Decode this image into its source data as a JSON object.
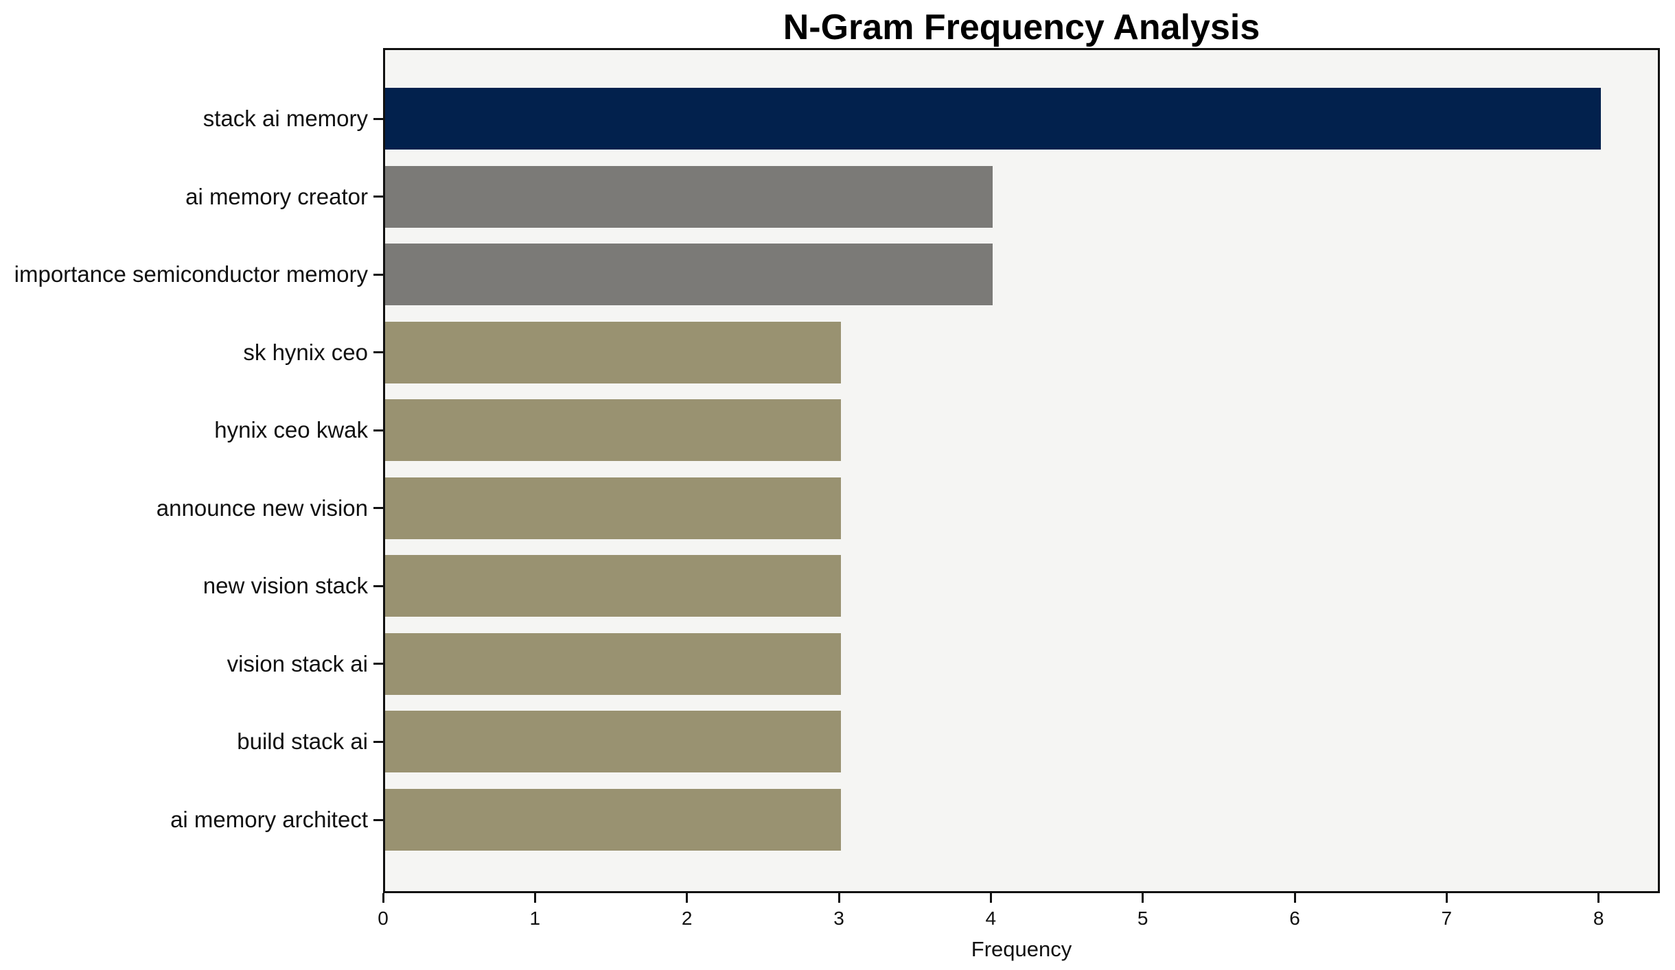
{
  "chart_data": {
    "type": "bar",
    "orientation": "horizontal",
    "title": "N-Gram Frequency Analysis",
    "xlabel": "Frequency",
    "ylabel": "",
    "categories": [
      "stack ai memory",
      "ai memory creator",
      "importance semiconductor memory",
      "sk hynix ceo",
      "hynix ceo kwak",
      "announce new vision",
      "new vision stack",
      "vision stack ai",
      "build stack ai",
      "ai memory architect"
    ],
    "values": [
      8,
      4,
      4,
      3,
      3,
      3,
      3,
      3,
      3,
      3
    ],
    "bar_colors": [
      "#02214d",
      "#7b7a77",
      "#7b7a77",
      "#999271",
      "#999271",
      "#999271",
      "#999271",
      "#999271",
      "#999271",
      "#999271"
    ],
    "x_ticks": [
      0,
      1,
      2,
      3,
      4,
      5,
      6,
      7,
      8
    ],
    "xlim": [
      0,
      8.39
    ],
    "grid": false,
    "legend": null,
    "plot_background": "#f5f5f3",
    "frame_color": "#111111",
    "title_color": "#000000"
  }
}
